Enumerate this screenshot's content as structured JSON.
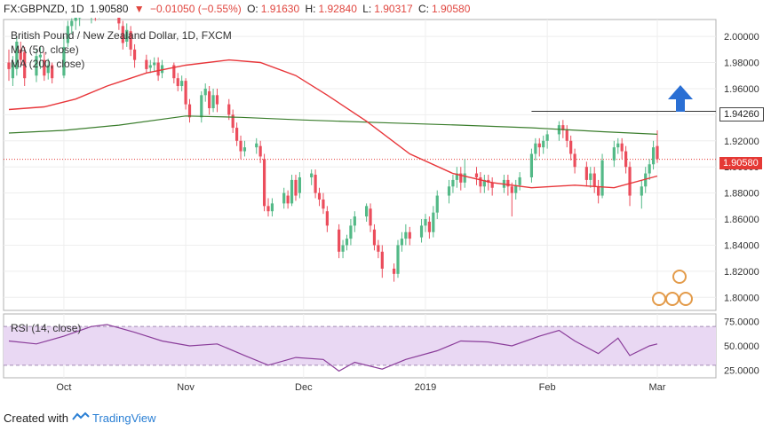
{
  "header": {
    "symbol": "FX:GBPNZD, 1D",
    "last": "1.90580",
    "change": "−0.01050 (−0.55%)",
    "open_label": "O:",
    "open": "1.91630",
    "high_label": "H:",
    "high": "1.92840",
    "low_label": "L:",
    "low": "1.90317",
    "close_label": "C:",
    "close": "1.90580"
  },
  "legend": {
    "title": "British Pound / New Zealand Dollar, 1D, FXCM",
    "ma50": "MA (50, close)",
    "ma200": "MA (200, close)",
    "rsi": "RSI (14, close)"
  },
  "footer": {
    "created_with": "Created with",
    "brand": "TradingView"
  },
  "colors": {
    "bull": "#53b987",
    "bear": "#eb4d5c",
    "ma50": "#e8363a",
    "ma200": "#3a7d2c",
    "rsi_line": "#8a3d9a",
    "rsi_band": "#e9d8f3",
    "arrow": "#2a6fd4",
    "resistance": "#333333"
  },
  "chart_data": {
    "type": "candlestick",
    "price_axis": {
      "ylim": [
        1.79,
        2.013
      ],
      "ticks": [
        "2.00000",
        "1.98000",
        "1.96000",
        "1.94000",
        "1.92000",
        "1.90000",
        "1.88000",
        "1.86000",
        "1.84000",
        "1.82000",
        "1.80000"
      ],
      "tick_values": [
        2.0,
        1.98,
        1.96,
        1.94,
        1.92,
        1.9,
        1.88,
        1.86,
        1.84,
        1.82,
        1.8
      ]
    },
    "time_axis": {
      "labels": [
        "Oct",
        "Nov",
        "Dec",
        "2019",
        "Feb",
        "Mar"
      ],
      "label_dates": [
        "2018-10-01",
        "2018-11-01",
        "2018-12-01",
        "2019-01-01",
        "2019-02-01",
        "2019-03-01"
      ],
      "start_date": "2018-09-17",
      "end_date": "2019-03-01"
    },
    "price_tags": {
      "resistance": "1.94260",
      "resistance_value": 1.9426,
      "resistance_start_date": "2019-01-28",
      "last": "1.90580",
      "last_value": 1.9058
    },
    "candles": [
      [
        "2018-09-17",
        1.98,
        1.975,
        1.966,
        1.99
      ],
      [
        "2018-09-18",
        1.968,
        1.98,
        1.962,
        1.985
      ],
      [
        "2018-09-19",
        1.975,
        1.996,
        1.97,
        2.0
      ],
      [
        "2018-09-20",
        1.99,
        1.982,
        1.978,
        1.996
      ],
      [
        "2018-09-21",
        1.988,
        1.968,
        1.962,
        1.992
      ],
      [
        "2018-09-24",
        1.97,
        1.985,
        1.965,
        1.99
      ],
      [
        "2018-09-25",
        1.984,
        1.986,
        1.975,
        1.992
      ],
      [
        "2018-09-26",
        1.982,
        1.97,
        1.966,
        1.988
      ],
      [
        "2018-09-27",
        1.972,
        1.978,
        1.967,
        1.983
      ],
      [
        "2018-09-28",
        1.978,
        1.968,
        1.964,
        1.98
      ],
      [
        "2018-10-01",
        1.97,
        1.992,
        1.968,
        2.0
      ],
      [
        "2018-10-02",
        1.995,
        2.008,
        1.992,
        2.012
      ],
      [
        "2018-10-03",
        2.008,
        2.012,
        2.002,
        2.014
      ],
      [
        "2018-10-04",
        2.012,
        2.015,
        2.005,
        2.018
      ],
      [
        "2018-10-05",
        2.014,
        2.018,
        2.008,
        2.022
      ],
      [
        "2018-10-08",
        2.016,
        2.02,
        2.01,
        2.024
      ],
      [
        "2018-10-09",
        2.02,
        2.018,
        2.012,
        2.024
      ],
      [
        "2018-10-10",
        2.018,
        2.022,
        2.014,
        2.026
      ],
      [
        "2018-10-11",
        2.022,
        2.02,
        2.016,
        2.026
      ],
      [
        "2018-10-12",
        2.02,
        2.024,
        2.016,
        2.028
      ],
      [
        "2018-10-15",
        2.024,
        2.01,
        2.005,
        2.026
      ],
      [
        "2018-10-16",
        2.008,
        1.995,
        1.99,
        2.012
      ],
      [
        "2018-10-17",
        1.996,
        2.005,
        1.992,
        2.01
      ],
      [
        "2018-10-18",
        2.004,
        1.99,
        1.985,
        2.008
      ],
      [
        "2018-10-19",
        1.99,
        1.982,
        1.976,
        1.994
      ],
      [
        "2018-10-22",
        1.982,
        1.975,
        1.972,
        1.986
      ],
      [
        "2018-10-23",
        1.976,
        1.978,
        1.972,
        1.982
      ],
      [
        "2018-10-24",
        1.978,
        1.98,
        1.973,
        1.984
      ],
      [
        "2018-10-25",
        1.98,
        1.97,
        1.966,
        1.984
      ],
      [
        "2018-10-26",
        1.972,
        1.978,
        1.968,
        1.982
      ],
      [
        "2018-10-29",
        1.978,
        1.968,
        1.964,
        1.98
      ],
      [
        "2018-10-30",
        1.968,
        1.962,
        1.958,
        1.972
      ],
      [
        "2018-10-31",
        1.962,
        1.966,
        1.958,
        1.97
      ],
      [
        "2018-11-01",
        1.966,
        1.948,
        1.944,
        1.968
      ],
      [
        "2018-11-02",
        1.948,
        1.938,
        1.934,
        1.952
      ],
      [
        "2018-11-05",
        1.938,
        1.955,
        1.934,
        1.958
      ],
      [
        "2018-11-06",
        1.955,
        1.96,
        1.95,
        1.964
      ],
      [
        "2018-11-07",
        1.958,
        1.945,
        1.94,
        1.962
      ],
      [
        "2018-11-08",
        1.945,
        1.955,
        1.942,
        1.96
      ],
      [
        "2018-11-09",
        1.955,
        1.948,
        1.942,
        1.96
      ],
      [
        "2018-11-12",
        1.948,
        1.94,
        1.936,
        1.952
      ],
      [
        "2018-11-13",
        1.94,
        1.93,
        1.926,
        1.944
      ],
      [
        "2018-11-14",
        1.93,
        1.92,
        1.916,
        1.934
      ],
      [
        "2018-11-15",
        1.92,
        1.912,
        1.906,
        1.924
      ],
      [
        "2018-11-16",
        1.912,
        1.915,
        1.908,
        1.92
      ],
      [
        "2018-11-19",
        1.915,
        1.918,
        1.91,
        1.922
      ],
      [
        "2018-11-20",
        1.916,
        1.908,
        1.903,
        1.92
      ],
      [
        "2018-11-21",
        1.906,
        1.87,
        1.866,
        1.91
      ],
      [
        "2018-11-22",
        1.87,
        1.866,
        1.862,
        1.876
      ],
      [
        "2018-11-23",
        1.866,
        1.872,
        1.862,
        1.876
      ],
      [
        "2018-11-26",
        1.872,
        1.88,
        1.868,
        1.884
      ],
      [
        "2018-11-27",
        1.878,
        1.872,
        1.868,
        1.882
      ],
      [
        "2018-11-28",
        1.872,
        1.89,
        1.87,
        1.894
      ],
      [
        "2018-11-29",
        1.89,
        1.878,
        1.874,
        1.894
      ],
      [
        "2018-11-30",
        1.88,
        1.892,
        1.876,
        1.896
      ],
      [
        "2018-12-03",
        1.892,
        1.895,
        1.886,
        1.898
      ],
      [
        "2018-12-04",
        1.894,
        1.88,
        1.876,
        1.898
      ],
      [
        "2018-12-05",
        1.88,
        1.875,
        1.87,
        1.884
      ],
      [
        "2018-12-06",
        1.875,
        1.868,
        1.864,
        1.88
      ],
      [
        "2018-12-07",
        1.866,
        1.855,
        1.85,
        1.87
      ],
      [
        "2018-12-10",
        1.852,
        1.835,
        1.83,
        1.856
      ],
      [
        "2018-12-11",
        1.835,
        1.84,
        1.83,
        1.844
      ],
      [
        "2018-12-12",
        1.84,
        1.845,
        1.836,
        1.848
      ],
      [
        "2018-12-13",
        1.845,
        1.855,
        1.84,
        1.86
      ],
      [
        "2018-12-14",
        1.855,
        1.862,
        1.85,
        1.866
      ],
      [
        "2018-12-17",
        1.862,
        1.87,
        1.858,
        1.872
      ],
      [
        "2018-12-18",
        1.868,
        1.855,
        1.85,
        1.872
      ],
      [
        "2018-12-19",
        1.852,
        1.84,
        1.836,
        1.856
      ],
      [
        "2018-12-20",
        1.84,
        1.835,
        1.83,
        1.844
      ],
      [
        "2018-12-21",
        1.835,
        1.822,
        1.815,
        1.84
      ],
      [
        "2018-12-24",
        1.822,
        1.818,
        1.812,
        1.826
      ],
      [
        "2018-12-25",
        1.818,
        1.84,
        1.815,
        1.844
      ],
      [
        "2018-12-26",
        1.84,
        1.845,
        1.835,
        1.85
      ],
      [
        "2018-12-27",
        1.845,
        1.85,
        1.84,
        1.856
      ],
      [
        "2018-12-28",
        1.85,
        1.845,
        1.84,
        1.854
      ],
      [
        "2018-12-31",
        1.846,
        1.855,
        1.842,
        1.86
      ],
      [
        "2019-01-01",
        1.855,
        1.86,
        1.85,
        1.864
      ],
      [
        "2019-01-02",
        1.858,
        1.85,
        1.845,
        1.862
      ],
      [
        "2019-01-03",
        1.85,
        1.865,
        1.846,
        1.87
      ],
      [
        "2019-01-04",
        1.865,
        1.878,
        1.86,
        1.882
      ],
      [
        "2019-01-07",
        1.878,
        1.885,
        1.872,
        1.89
      ],
      [
        "2019-01-08",
        1.885,
        1.89,
        1.88,
        1.894
      ],
      [
        "2019-01-09",
        1.89,
        1.895,
        1.884,
        1.9
      ],
      [
        "2019-01-10",
        1.895,
        1.888,
        1.882,
        1.9
      ],
      [
        "2019-01-11",
        1.888,
        1.895,
        1.884,
        1.906
      ],
      [
        "2019-01-14",
        1.895,
        1.892,
        1.886,
        1.9
      ],
      [
        "2019-01-15",
        1.892,
        1.885,
        1.88,
        1.896
      ],
      [
        "2019-01-16",
        1.885,
        1.89,
        1.88,
        1.894
      ],
      [
        "2019-01-17",
        1.89,
        1.888,
        1.882,
        1.894
      ],
      [
        "2019-01-18",
        1.888,
        1.884,
        1.878,
        1.892
      ],
      [
        "2019-01-21",
        1.884,
        1.89,
        1.88,
        1.894
      ],
      [
        "2019-01-22",
        1.89,
        1.885,
        1.878,
        1.894
      ],
      [
        "2019-01-23",
        1.885,
        1.88,
        1.862,
        1.888
      ],
      [
        "2019-01-24",
        1.88,
        1.886,
        1.875,
        1.89
      ],
      [
        "2019-01-25",
        1.886,
        1.892,
        1.882,
        1.896
      ],
      [
        "2019-01-28",
        1.892,
        1.91,
        1.888,
        1.914
      ],
      [
        "2019-01-29",
        1.91,
        1.918,
        1.905,
        1.922
      ],
      [
        "2019-01-30",
        1.918,
        1.915,
        1.908,
        1.922
      ],
      [
        "2019-01-31",
        1.915,
        1.92,
        1.91,
        1.924
      ],
      [
        "2019-02-01",
        1.92,
        1.925,
        1.914,
        1.928
      ],
      [
        "2019-02-04",
        1.925,
        1.932,
        1.92,
        1.935
      ],
      [
        "2019-02-05",
        1.932,
        1.928,
        1.922,
        1.936
      ],
      [
        "2019-02-06",
        1.928,
        1.92,
        1.915,
        1.932
      ],
      [
        "2019-02-07",
        1.92,
        1.91,
        1.905,
        1.924
      ],
      [
        "2019-02-08",
        1.91,
        1.9,
        1.895,
        1.914
      ],
      [
        "2019-02-11",
        1.9,
        1.89,
        1.885,
        1.904
      ],
      [
        "2019-02-12",
        1.89,
        1.895,
        1.884,
        1.9
      ],
      [
        "2019-02-13",
        1.895,
        1.885,
        1.88,
        1.9
      ],
      [
        "2019-02-14",
        1.885,
        1.878,
        1.872,
        1.89
      ],
      [
        "2019-02-15",
        1.878,
        1.905,
        1.876,
        1.91
      ],
      [
        "2019-02-18",
        1.905,
        1.915,
        1.9,
        1.92
      ],
      [
        "2019-02-19",
        1.915,
        1.918,
        1.91,
        1.922
      ],
      [
        "2019-02-20",
        1.918,
        1.912,
        1.906,
        1.922
      ],
      [
        "2019-02-21",
        1.912,
        1.9,
        1.895,
        1.916
      ],
      [
        "2019-02-22",
        1.9,
        1.878,
        1.87,
        1.904
      ],
      [
        "2019-02-25",
        1.878,
        1.885,
        1.868,
        1.89
      ],
      [
        "2019-02-26",
        1.885,
        1.895,
        1.88,
        1.9
      ],
      [
        "2019-02-27",
        1.895,
        1.902,
        1.89,
        1.906
      ],
      [
        "2019-02-28",
        1.902,
        1.915,
        1.898,
        1.92
      ],
      [
        "2019-03-01",
        1.916,
        1.906,
        1.903,
        1.928
      ]
    ],
    "ma50_points": [
      [
        "2018-09-17",
        1.944
      ],
      [
        "2018-09-26",
        1.946
      ],
      [
        "2018-10-04",
        1.952
      ],
      [
        "2018-10-12",
        1.962
      ],
      [
        "2018-10-22",
        1.972
      ],
      [
        "2018-11-01",
        1.978
      ],
      [
        "2018-11-12",
        1.982
      ],
      [
        "2018-11-20",
        1.98
      ],
      [
        "2018-11-29",
        1.97
      ],
      [
        "2018-12-07",
        1.955
      ],
      [
        "2018-12-17",
        1.935
      ],
      [
        "2018-12-28",
        1.91
      ],
      [
        "2019-01-08",
        1.895
      ],
      [
        "2019-01-18",
        1.888
      ],
      [
        "2019-01-28",
        1.884
      ],
      [
        "2019-02-08",
        1.886
      ],
      [
        "2019-02-18",
        1.884
      ],
      [
        "2019-03-01",
        1.893
      ]
    ],
    "ma200_points": [
      [
        "2018-09-17",
        1.926
      ],
      [
        "2018-10-01",
        1.928
      ],
      [
        "2018-10-15",
        1.932
      ],
      [
        "2018-11-01",
        1.939
      ],
      [
        "2018-11-15",
        1.938
      ],
      [
        "2018-12-01",
        1.936
      ],
      [
        "2018-12-20",
        1.934
      ],
      [
        "2019-01-10",
        1.932
      ],
      [
        "2019-01-28",
        1.93
      ],
      [
        "2019-02-15",
        1.927
      ],
      [
        "2019-03-01",
        1.925
      ]
    ],
    "rsi_axis": {
      "ylim": [
        17,
        83
      ],
      "ticks": [
        "75.0000",
        "50.0000",
        "25.0000"
      ],
      "tick_values": [
        75,
        50,
        25
      ],
      "band": [
        30,
        70
      ]
    },
    "rsi_points": [
      [
        "2018-09-17",
        55
      ],
      [
        "2018-09-24",
        52
      ],
      [
        "2018-10-01",
        60
      ],
      [
        "2018-10-08",
        70
      ],
      [
        "2018-10-12",
        72
      ],
      [
        "2018-10-19",
        64
      ],
      [
        "2018-10-26",
        55
      ],
      [
        "2018-11-02",
        50
      ],
      [
        "2018-11-09",
        52
      ],
      [
        "2018-11-16",
        40
      ],
      [
        "2018-11-22",
        30
      ],
      [
        "2018-11-29",
        38
      ],
      [
        "2018-12-06",
        36
      ],
      [
        "2018-12-10",
        24
      ],
      [
        "2018-12-14",
        33
      ],
      [
        "2018-12-21",
        26
      ],
      [
        "2018-12-27",
        36
      ],
      [
        "2019-01-04",
        45
      ],
      [
        "2019-01-10",
        55
      ],
      [
        "2019-01-17",
        54
      ],
      [
        "2019-01-23",
        50
      ],
      [
        "2019-01-30",
        60
      ],
      [
        "2019-02-04",
        66
      ],
      [
        "2019-02-08",
        55
      ],
      [
        "2019-02-14",
        42
      ],
      [
        "2019-02-19",
        58
      ],
      [
        "2019-02-22",
        40
      ],
      [
        "2019-02-27",
        50
      ],
      [
        "2019-03-01",
        52
      ]
    ]
  }
}
